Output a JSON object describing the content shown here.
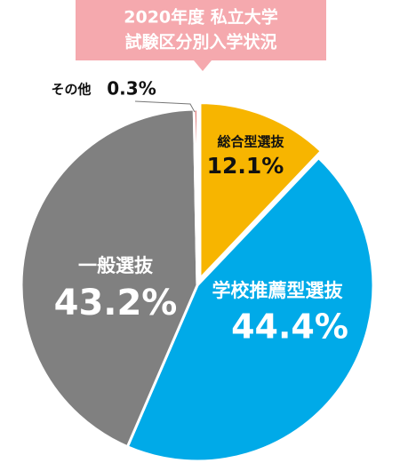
{
  "chart_data": {
    "type": "pie",
    "title": [
      "2020年度 私立大学",
      "試験区分別入学状況"
    ],
    "categories": [
      "総合型選抜",
      "学校推薦型選抜",
      "一般選抜",
      "その他"
    ],
    "values": [
      12.1,
      44.4,
      43.2,
      0.3
    ],
    "value_labels": [
      "12.1%",
      "44.4%",
      "43.2%",
      "0.3%"
    ],
    "colors": [
      "#f7b500",
      "#00aae8",
      "#808080",
      "#c00000"
    ]
  }
}
